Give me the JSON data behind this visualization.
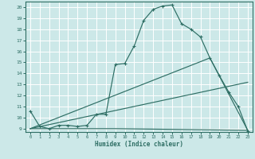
{
  "title": "",
  "xlabel": "Humidex (Indice chaleur)",
  "ylabel": "",
  "bg_color": "#cce8e8",
  "line_color": "#2e6e64",
  "grid_color": "#ffffff",
  "xlim": [
    -0.5,
    23.5
  ],
  "ylim": [
    8.7,
    20.5
  ],
  "xticks": [
    0,
    1,
    2,
    3,
    4,
    5,
    6,
    7,
    8,
    9,
    10,
    11,
    12,
    13,
    14,
    15,
    16,
    17,
    18,
    19,
    20,
    21,
    22,
    23
  ],
  "yticks": [
    9,
    10,
    11,
    12,
    13,
    14,
    15,
    16,
    17,
    18,
    19,
    20
  ],
  "line1_x": [
    0,
    1,
    2,
    3,
    4,
    5,
    6,
    7,
    8,
    9,
    10,
    11,
    12,
    13,
    14,
    15,
    16,
    17,
    18,
    19,
    20,
    21,
    22,
    23
  ],
  "line1_y": [
    10.6,
    9.2,
    9.0,
    9.3,
    9.3,
    9.2,
    9.3,
    10.3,
    10.3,
    14.8,
    14.9,
    16.5,
    18.8,
    19.8,
    20.1,
    20.2,
    18.5,
    18.0,
    17.3,
    15.4,
    13.8,
    12.3,
    11.0,
    8.8
  ],
  "line2_x": [
    0,
    9,
    23
  ],
  "line2_y": [
    9.0,
    9.0,
    8.85
  ],
  "line3_x": [
    0,
    23
  ],
  "line3_y": [
    9.0,
    13.2
  ],
  "line4_x": [
    0,
    19,
    23
  ],
  "line4_y": [
    9.0,
    15.4,
    8.85
  ]
}
